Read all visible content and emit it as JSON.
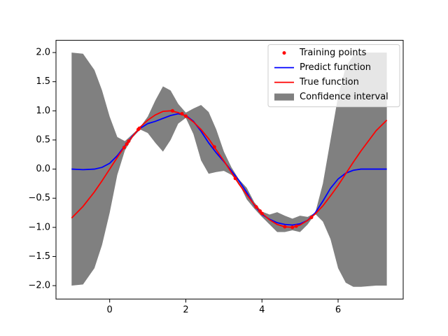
{
  "chart_data": {
    "type": "line",
    "xlim": [
      -1.41,
      7.71
    ],
    "ylim": [
      -2.23,
      2.21
    ],
    "xticks": [
      0,
      2,
      4,
      6
    ],
    "yticks": [
      {
        "value": -2.0,
        "label": "−2.0"
      },
      {
        "value": -1.5,
        "label": "−1.5"
      },
      {
        "value": -1.0,
        "label": "−1.0"
      },
      {
        "value": -0.5,
        "label": "−0.5"
      },
      {
        "value": 0.0,
        "label": "0.0"
      },
      {
        "value": 0.5,
        "label": "0.5"
      },
      {
        "value": 1.0,
        "label": "1.0"
      },
      {
        "value": 1.5,
        "label": "1.5"
      },
      {
        "value": 2.0,
        "label": "2.0"
      }
    ],
    "legend": "upper right",
    "x": [
      -1,
      -0.7,
      -0.4,
      -0.2,
      0,
      0.2,
      0.4,
      0.6,
      0.8,
      1.0,
      1.2,
      1.4,
      1.6,
      1.8,
      2.0,
      2.2,
      2.4,
      2.6,
      2.8,
      3.0,
      3.2,
      3.4,
      3.6,
      3.8,
      4.0,
      4.2,
      4.4,
      4.6,
      4.8,
      5.0,
      5.2,
      5.4,
      5.6,
      5.8,
      6.0,
      6.2,
      6.4,
      6.6,
      7.0,
      7.28
    ],
    "series": [
      {
        "name": "Training points",
        "kind": "scatter",
        "color": "#ff0000",
        "x": [
          0.38,
          0.45,
          0.5,
          0.75,
          0.78,
          1.65,
          1.9,
          2.0,
          2.75,
          3.3,
          3.85,
          3.95,
          4.0,
          4.6,
          4.8,
          4.9,
          5.3
        ],
        "values": [
          0.37,
          0.43,
          0.48,
          0.68,
          0.7,
          1.0,
          0.95,
          0.91,
          0.38,
          -0.16,
          -0.65,
          -0.72,
          -0.76,
          -0.99,
          -1.0,
          -0.98,
          -0.83
        ]
      },
      {
        "name": "Predict function",
        "kind": "line",
        "color": "#0000ff",
        "values": [
          0,
          -0.01,
          0,
          0.03,
          0.1,
          0.23,
          0.4,
          0.57,
          0.7,
          0.78,
          0.82,
          0.87,
          0.92,
          0.95,
          0.92,
          0.82,
          0.65,
          0.45,
          0.28,
          0.13,
          -0.03,
          -0.2,
          -0.4,
          -0.62,
          -0.78,
          -0.86,
          -0.92,
          -0.95,
          -0.96,
          -0.94,
          -0.88,
          -0.75,
          -0.55,
          -0.33,
          -0.17,
          -0.07,
          -0.02,
          0,
          0,
          0
        ]
      },
      {
        "name": "True function",
        "kind": "line",
        "color": "#ff0000",
        "values": [
          -0.84,
          -0.64,
          -0.39,
          -0.2,
          0,
          0.2,
          0.39,
          0.56,
          0.72,
          0.84,
          0.93,
          0.99,
          1.0,
          0.97,
          0.91,
          0.81,
          0.68,
          0.52,
          0.33,
          0.14,
          -0.06,
          -0.26,
          -0.44,
          -0.61,
          -0.76,
          -0.87,
          -0.95,
          -0.99,
          -1.0,
          -0.96,
          -0.88,
          -0.77,
          -0.63,
          -0.46,
          -0.28,
          -0.08,
          0.12,
          0.31,
          0.66,
          0.84
        ]
      },
      {
        "name": "Confidence interval",
        "kind": "band",
        "color": "#808080",
        "upper": [
          2.0,
          1.98,
          1.7,
          1.35,
          0.9,
          0.55,
          0.48,
          0.6,
          0.72,
          0.9,
          1.18,
          1.42,
          1.35,
          1.12,
          0.97,
          1.04,
          1.1,
          0.98,
          0.68,
          0.3,
          0.03,
          -0.18,
          -0.32,
          -0.57,
          -0.73,
          -0.78,
          -0.74,
          -0.8,
          -0.85,
          -0.8,
          -0.82,
          -0.75,
          -0.25,
          0.5,
          1.25,
          1.75,
          1.95,
          2.0,
          2.0,
          2.0
        ],
        "lower": [
          -2.0,
          -1.98,
          -1.7,
          -1.3,
          -0.75,
          -0.1,
          0.32,
          0.54,
          0.68,
          0.62,
          0.45,
          0.3,
          0.5,
          0.78,
          0.88,
          0.6,
          0.15,
          -0.08,
          -0.05,
          -0.03,
          -0.1,
          -0.25,
          -0.52,
          -0.68,
          -0.82,
          -0.95,
          -1.08,
          -1.08,
          -1.05,
          -1.08,
          -0.95,
          -0.77,
          -0.9,
          -1.2,
          -1.7,
          -1.95,
          -2.02,
          -2.02,
          -2.0,
          -2.0
        ]
      }
    ]
  }
}
